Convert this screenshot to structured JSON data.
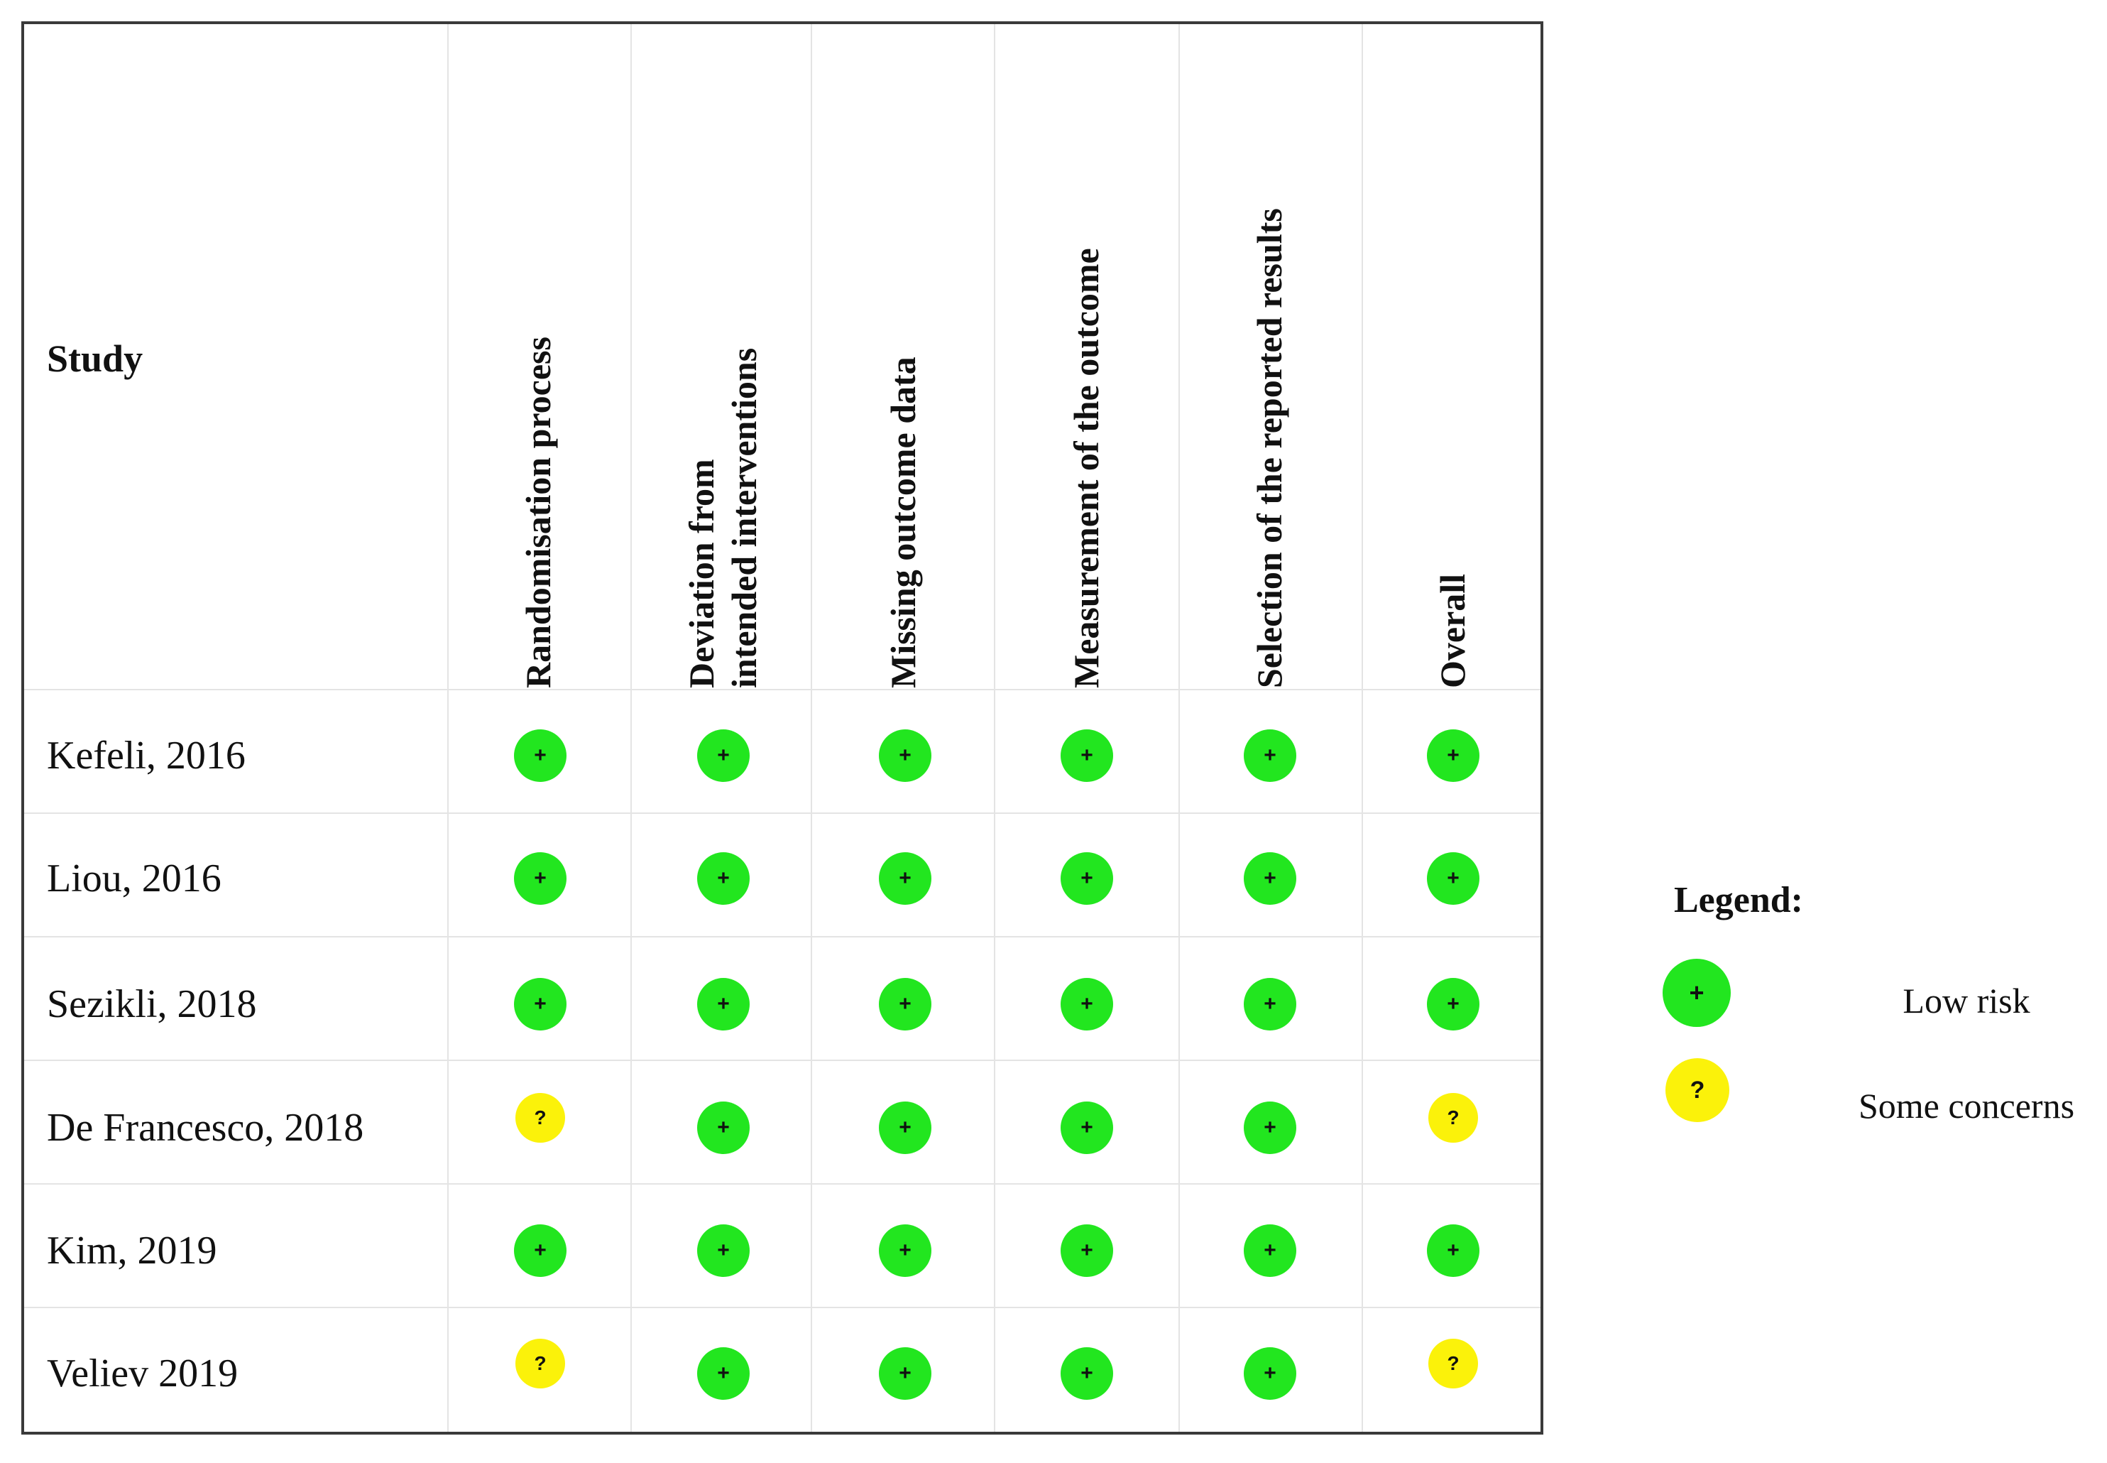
{
  "chart_data": {
    "type": "table",
    "study_header": "Study",
    "domains": [
      {
        "id": "rand",
        "lines": [
          "Randomisation process"
        ]
      },
      {
        "id": "dev",
        "lines": [
          "Deviation from",
          "intended interventions"
        ]
      },
      {
        "id": "miss",
        "lines": [
          "Missing outcome data"
        ]
      },
      {
        "id": "meas",
        "lines": [
          "Measurement of the outcome"
        ]
      },
      {
        "id": "sel",
        "lines": [
          "Selection of the reported results"
        ]
      },
      {
        "id": "overall",
        "lines": [
          "Overall"
        ]
      }
    ],
    "studies": [
      {
        "name": "Kefeli, 2016",
        "ratings": [
          "low",
          "low",
          "low",
          "low",
          "low",
          "low"
        ]
      },
      {
        "name": "Liou, 2016",
        "ratings": [
          "low",
          "low",
          "low",
          "low",
          "low",
          "low"
        ]
      },
      {
        "name": "Sezikli, 2018",
        "ratings": [
          "low",
          "low",
          "low",
          "low",
          "low",
          "low"
        ]
      },
      {
        "name": "De Francesco, 2018",
        "ratings": [
          "some",
          "low",
          "low",
          "low",
          "low",
          "some"
        ]
      },
      {
        "name": "Kim, 2019",
        "ratings": [
          "low",
          "low",
          "low",
          "low",
          "low",
          "low"
        ]
      },
      {
        "name": "Veliev 2019",
        "ratings": [
          "some",
          "low",
          "low",
          "low",
          "low",
          "some"
        ]
      }
    ],
    "symbols": {
      "low": "+",
      "some": "?"
    },
    "colors": {
      "low": "#22e61f",
      "some": "#fbf20a"
    },
    "legend": {
      "title": "Legend:",
      "items": [
        {
          "key": "low",
          "symbol": "+",
          "label": "Low risk"
        },
        {
          "key": "some",
          "symbol": "?",
          "label": "Some concerns"
        }
      ]
    }
  }
}
